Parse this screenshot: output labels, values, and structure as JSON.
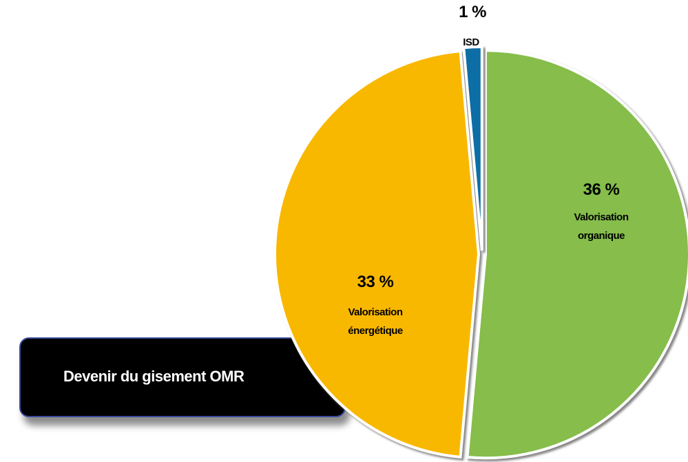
{
  "chart_data": {
    "type": "pie",
    "title": "Devenir du gisement OMR",
    "categories": [
      "Valorisation organique",
      "Valorisation énergétique",
      "ISD"
    ],
    "values": [
      36,
      33,
      1
    ],
    "value_labels": [
      "36 %",
      "33 %",
      "1 %"
    ],
    "colors": [
      "#86bd4b",
      "#f9b800",
      "#0b6ea5"
    ]
  }
}
